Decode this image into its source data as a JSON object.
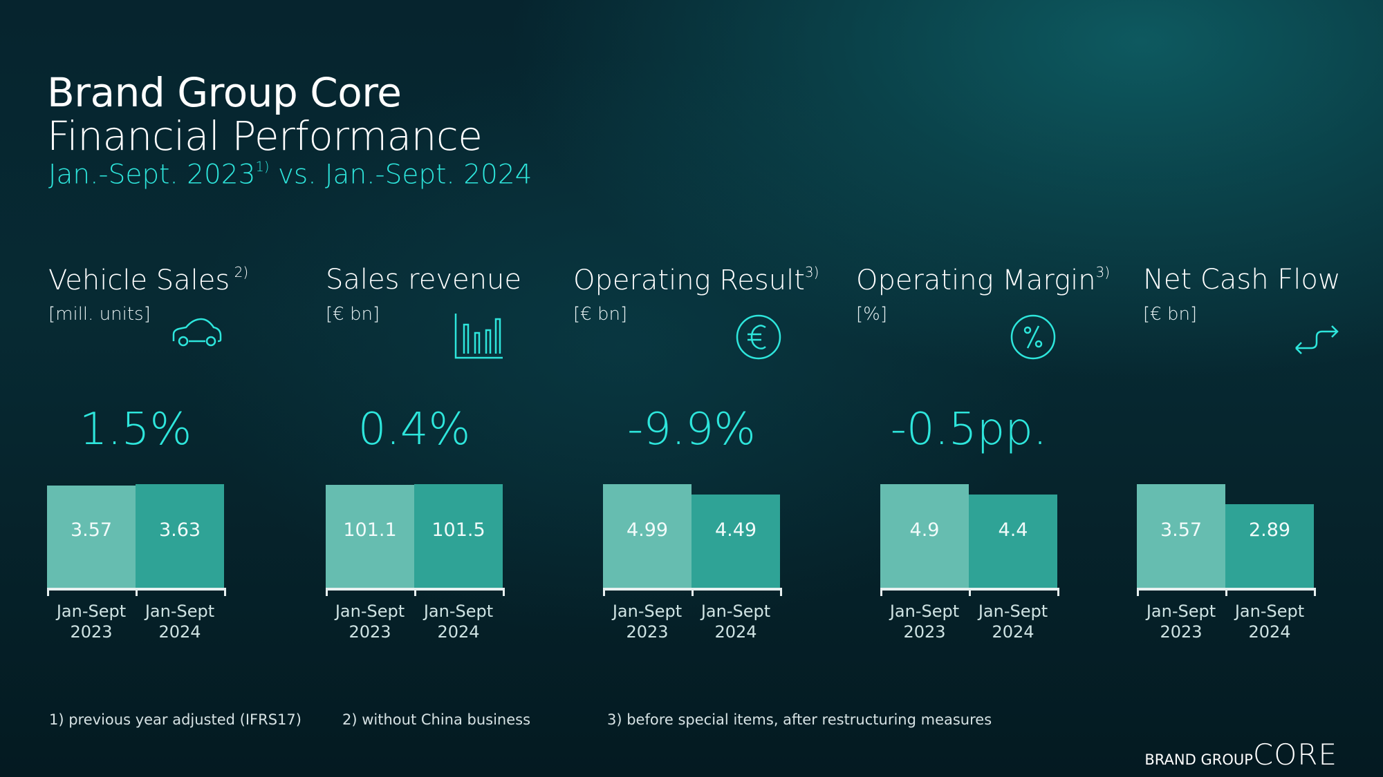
{
  "header": {
    "title": "Brand Group Core",
    "subtitle": "Financial Performance",
    "period_a": "Jan.-Sept. 2023",
    "period_ref": "1)",
    "period_b": " vs. Jan.-Sept. 2024"
  },
  "colors": {
    "accent": "#2ee6dc",
    "bar_2023": "#66bdb0",
    "bar_2024": "#2fa396"
  },
  "chart_data": [
    {
      "type": "bar",
      "title": "Vehicle Sales",
      "footnote_ref": "2)",
      "unit": "[mill. units]",
      "icon": "car-icon",
      "change": "1.5%",
      "categories": [
        "Jan-Sept 2023",
        "Jan-Sept 2024"
      ],
      "values": [
        3.57,
        3.63
      ],
      "labels": [
        "3.57",
        "3.63"
      ]
    },
    {
      "type": "bar",
      "title": "Sales revenue",
      "footnote_ref": "",
      "unit": "[€ bn]",
      "icon": "bar-chart-icon",
      "change": "0.4%",
      "categories": [
        "Jan-Sept 2023",
        "Jan-Sept 2024"
      ],
      "values": [
        101.1,
        101.5
      ],
      "labels": [
        "101.1",
        "101.5"
      ]
    },
    {
      "type": "bar",
      "title": "Operating Result",
      "footnote_ref": "3)",
      "unit": "[€ bn]",
      "icon": "euro-icon",
      "change": "-9.9%",
      "categories": [
        "Jan-Sept 2023",
        "Jan-Sept 2024"
      ],
      "values": [
        4.99,
        4.49
      ],
      "labels": [
        "4.99",
        "4.49"
      ]
    },
    {
      "type": "bar",
      "title": "Operating Margin",
      "footnote_ref": "3)",
      "unit": "[%]",
      "icon": "percent-icon",
      "change": "-0.5pp.",
      "categories": [
        "Jan-Sept 2023",
        "Jan-Sept 2024"
      ],
      "values": [
        4.9,
        4.4
      ],
      "labels": [
        "4.9",
        "4.4"
      ]
    },
    {
      "type": "bar",
      "title": "Net Cash Flow",
      "footnote_ref": "",
      "unit": "[€ bn]",
      "icon": "cash-flow-arrows-icon",
      "change": "",
      "categories": [
        "Jan-Sept 2023",
        "Jan-Sept 2024"
      ],
      "values": [
        3.57,
        2.89
      ],
      "labels": [
        "3.57",
        "2.89"
      ]
    }
  ],
  "footnotes": [
    "1) previous year adjusted (IFRS17)",
    "2) without China business",
    "3) before special items, after restructuring measures"
  ],
  "logo": {
    "small": "BRAND GROUP",
    "large": "CORE"
  }
}
